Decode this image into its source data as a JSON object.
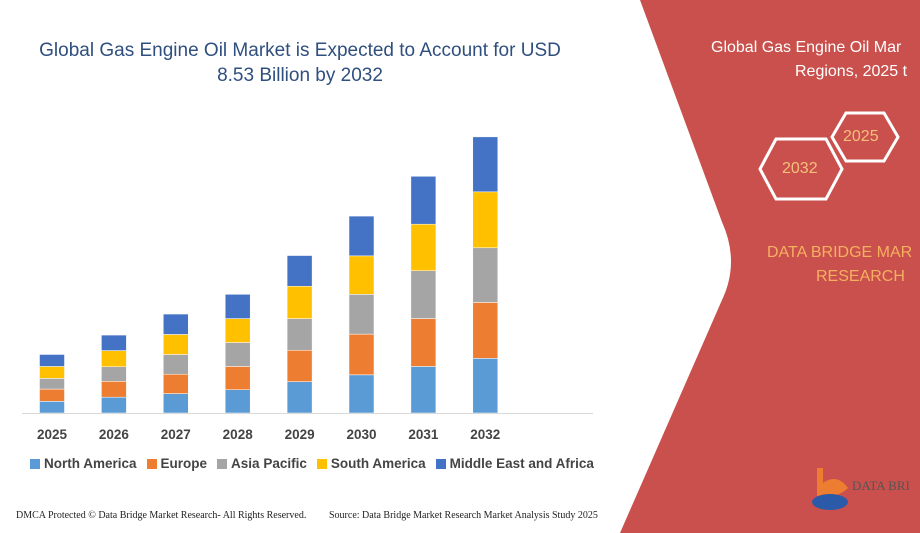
{
  "title": "Global Gas Engine Oil Market is Expected to Account for USD 8.53 Billion by 2032",
  "side_panel": {
    "title_line1": "Global Gas Engine Oil Mar",
    "title_line2": "Regions, 2025 t",
    "hex_start": "2025",
    "hex_end": "2032",
    "brand_line1": "DATA BRIDGE MAR",
    "brand_line2": "RESEARCH",
    "logo_text": "DATA BRI",
    "panel_color": "#C9504C"
  },
  "footer": {
    "left": "DMCA Protected © Data Bridge Market Research- All Rights Reserved.",
    "right": "Source: Data Bridge Market Research Market Analysis Study 2025"
  },
  "chart_data": {
    "type": "bar",
    "stacked": true,
    "title": "Global Gas Engine Oil Market is Expected to Account for USD 8.53 Billion by 2032",
    "xlabel": "",
    "ylabel": "",
    "unit": "USD Billion (estimated)",
    "ylim": [
      0,
      9
    ],
    "grid": false,
    "legend_position": "bottom",
    "categories": [
      "2025",
      "2026",
      "2027",
      "2028",
      "2029",
      "2030",
      "2031",
      "2032"
    ],
    "series": [
      {
        "name": "North America",
        "color": "#5B9BD5",
        "values": [
          0.36,
          0.49,
          0.6,
          0.72,
          0.97,
          1.18,
          1.44,
          1.69
        ]
      },
      {
        "name": "Europe",
        "color": "#ED7D31",
        "values": [
          0.38,
          0.49,
          0.6,
          0.72,
          0.97,
          1.26,
          1.48,
          1.73
        ]
      },
      {
        "name": "Asia Pacific",
        "color": "#A5A5A5",
        "values": [
          0.33,
          0.45,
          0.61,
          0.74,
          0.98,
          1.23,
          1.48,
          1.69
        ]
      },
      {
        "name": "South America",
        "color": "#FFC000",
        "values": [
          0.37,
          0.5,
          0.62,
          0.74,
          1.0,
          1.19,
          1.44,
          1.73
        ]
      },
      {
        "name": "Middle East and Africa",
        "color": "#4472C4",
        "values": [
          0.37,
          0.48,
          0.63,
          0.75,
          0.95,
          1.23,
          1.48,
          1.7
        ]
      }
    ]
  }
}
